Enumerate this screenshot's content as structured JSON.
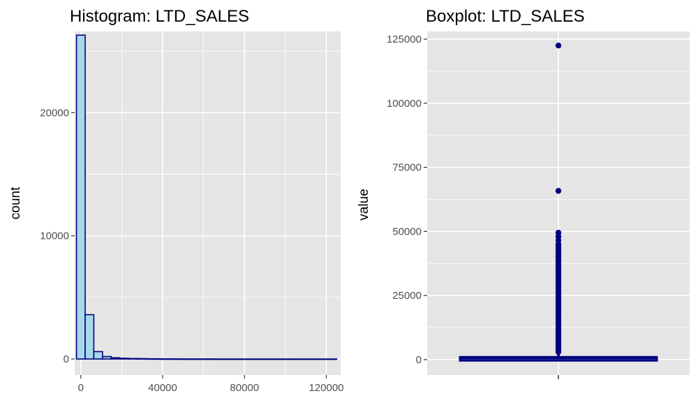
{
  "colors": {
    "panel_bg": "#e5e5e5",
    "grid": "#ffffff",
    "bar_fill": "#a6d8ea",
    "bar_stroke": "#000080",
    "point": "#000080",
    "tick_text": "#4d4d4d"
  },
  "chart_data": [
    {
      "type": "bar",
      "title": "Histogram: LTD_SALES",
      "xlabel": "",
      "ylabel": "count",
      "xlim": [
        -3000,
        127000
      ],
      "ylim": [
        -1300,
        26600
      ],
      "x_ticks": [
        0,
        40000,
        80000,
        120000
      ],
      "x_tick_labels": [
        "0",
        "40000",
        "80000",
        "120000"
      ],
      "y_ticks": [
        0,
        10000,
        20000
      ],
      "y_tick_labels": [
        "0",
        "10000",
        "20000"
      ],
      "grid": true,
      "bin_width": 4240,
      "bin_centers": [
        0,
        4240,
        8480,
        12720,
        16960,
        21200,
        25440,
        29680,
        33920,
        38160,
        42400,
        46640,
        50880,
        55120,
        59360,
        63600,
        67840,
        72080,
        76320,
        80560,
        84800,
        89040,
        93280,
        97520,
        101760,
        106000,
        110240,
        114480,
        118720,
        122960
      ],
      "values": [
        26300,
        3600,
        600,
        200,
        100,
        60,
        40,
        30,
        20,
        15,
        10,
        8,
        6,
        5,
        4,
        3,
        2,
        2,
        1,
        1,
        1,
        1,
        1,
        1,
        1,
        1,
        1,
        1,
        1,
        1
      ]
    },
    {
      "type": "scatter",
      "subtype": "boxplot",
      "title": "Boxplot: LTD_SALES",
      "xlabel": "",
      "ylabel": "value",
      "ylim": [
        -6000,
        128000
      ],
      "y_ticks": [
        0,
        25000,
        50000,
        75000,
        100000,
        125000
      ],
      "y_tick_labels": [
        "0",
        "25000",
        "50000",
        "75000",
        "100000",
        "125000"
      ],
      "grid": true,
      "box": {
        "q1": 0,
        "median": 500,
        "q3": 1000
      },
      "outliers": [
        122500,
        65800,
        49500,
        48000,
        46500,
        45000,
        44000,
        43000,
        42000,
        41000,
        40000,
        39000,
        38000,
        37000,
        36000,
        35000,
        34000,
        33000,
        32000,
        31000,
        30000,
        29000,
        28000,
        27000,
        26000,
        25000,
        24000,
        23000,
        22000,
        21000,
        20000,
        19000,
        18000,
        17000,
        16000,
        15000,
        14000,
        13000,
        12000,
        11000,
        10000,
        9000,
        8000,
        7000,
        6000,
        5000,
        4000,
        3500,
        3000
      ]
    }
  ]
}
